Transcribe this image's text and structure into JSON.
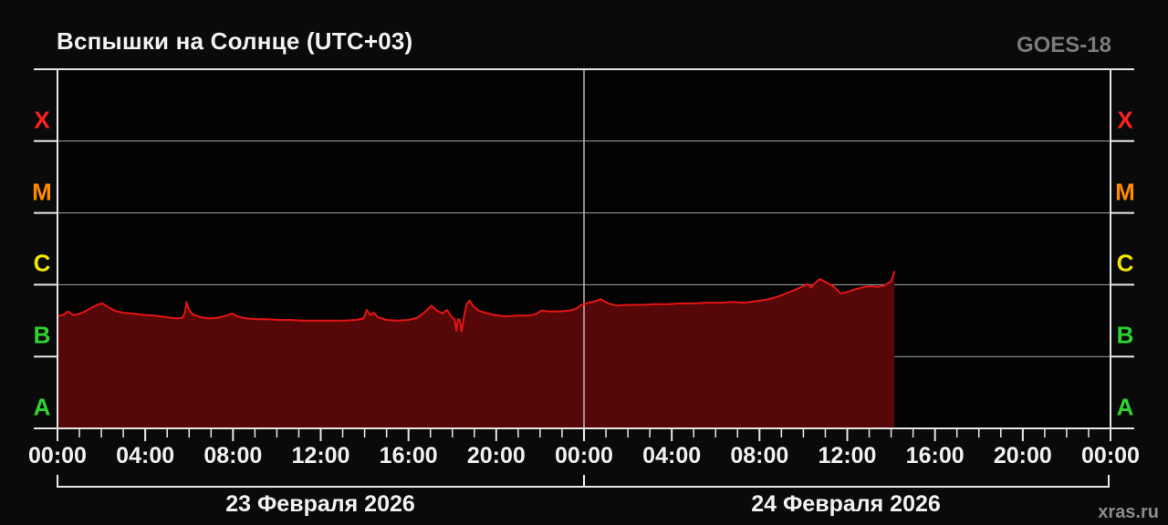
{
  "title": "Вспышки на Солнце (UTC+03)",
  "satellite": "GOES-18",
  "watermark": "xras.ru",
  "colors": {
    "background": "#0a0a0a",
    "plot_background": "#020202",
    "frame": "#e9e9e9",
    "grid": "#a8a8a8",
    "center_gridline": "#b5b5b5",
    "line": "#e51414",
    "fill": "#560707",
    "title_text": "#f2f2f2",
    "satellite_text": "#7b7b7b",
    "watermark_text": "#8c8c8c",
    "tick_text": "#f0f0f0"
  },
  "y_axis": {
    "classes": [
      {
        "label": "X",
        "color": "#ff2020"
      },
      {
        "label": "M",
        "color": "#ff8c00"
      },
      {
        "label": "C",
        "color": "#f0e600"
      },
      {
        "label": "B",
        "color": "#2ed52e"
      },
      {
        "label": "A",
        "color": "#2ed52e"
      }
    ]
  },
  "x_axis": {
    "minor_tick_every_hours": 1,
    "major_tick_every_hours": 4,
    "ticks": [
      {
        "hour": 0,
        "label": "00:00"
      },
      {
        "hour": 4,
        "label": "04:00"
      },
      {
        "hour": 8,
        "label": "08:00"
      },
      {
        "hour": 12,
        "label": "12:00"
      },
      {
        "hour": 16,
        "label": "16:00"
      },
      {
        "hour": 20,
        "label": "20:00"
      },
      {
        "hour": 24,
        "label": "00:00"
      },
      {
        "hour": 28,
        "label": "04:00"
      },
      {
        "hour": 32,
        "label": "08:00"
      },
      {
        "hour": 36,
        "label": "12:00"
      },
      {
        "hour": 40,
        "label": "16:00"
      },
      {
        "hour": 44,
        "label": "20:00"
      },
      {
        "hour": 48,
        "label": "00:00"
      }
    ]
  },
  "dates": [
    {
      "label": "23 Февраля 2026"
    },
    {
      "label": "24 Февраля 2026"
    }
  ],
  "chart_data": {
    "type": "area",
    "title": "Вспышки на Солнце (UTC+03)",
    "satellite": "GOES-18",
    "x_unit": "hours since 23 Feb 2026 00:00 (UTC+03)",
    "x_range": [
      0,
      48
    ],
    "data_end_hour": 38.15,
    "y_scale": "log10 X-ray flux bands, level 0 = bottom of A, 5 = top of X; one unit per flare class decade",
    "y_bands_bottom_to_top": [
      "A",
      "B",
      "C",
      "M",
      "X"
    ],
    "grid": "band boundaries + midnight divider",
    "legend": "none",
    "points": [
      [
        0,
        1.56
      ],
      [
        0.25,
        1.58
      ],
      [
        0.5,
        1.63
      ],
      [
        0.7,
        1.58
      ],
      [
        0.95,
        1.59
      ],
      [
        1.2,
        1.62
      ],
      [
        1.5,
        1.67
      ],
      [
        1.8,
        1.72
      ],
      [
        2.05,
        1.74
      ],
      [
        2.3,
        1.69
      ],
      [
        2.6,
        1.64
      ],
      [
        3.0,
        1.61
      ],
      [
        3.4,
        1.6
      ],
      [
        3.9,
        1.58
      ],
      [
        4.4,
        1.57
      ],
      [
        4.9,
        1.55
      ],
      [
        5.4,
        1.53
      ],
      [
        5.7,
        1.54
      ],
      [
        5.82,
        1.62
      ],
      [
        5.88,
        1.76
      ],
      [
        5.98,
        1.66
      ],
      [
        6.15,
        1.59
      ],
      [
        6.5,
        1.55
      ],
      [
        6.9,
        1.53
      ],
      [
        7.3,
        1.54
      ],
      [
        7.7,
        1.57
      ],
      [
        7.95,
        1.6
      ],
      [
        8.2,
        1.56
      ],
      [
        8.6,
        1.53
      ],
      [
        9.1,
        1.52
      ],
      [
        9.6,
        1.52
      ],
      [
        10.1,
        1.51
      ],
      [
        10.6,
        1.51
      ],
      [
        11.2,
        1.5
      ],
      [
        11.8,
        1.5
      ],
      [
        12.4,
        1.5
      ],
      [
        13.0,
        1.5
      ],
      [
        13.6,
        1.51
      ],
      [
        13.95,
        1.53
      ],
      [
        14.1,
        1.65
      ],
      [
        14.25,
        1.58
      ],
      [
        14.42,
        1.61
      ],
      [
        14.6,
        1.55
      ],
      [
        15.0,
        1.51
      ],
      [
        15.5,
        1.5
      ],
      [
        16.0,
        1.51
      ],
      [
        16.4,
        1.54
      ],
      [
        16.75,
        1.62
      ],
      [
        17.05,
        1.71
      ],
      [
        17.3,
        1.64
      ],
      [
        17.55,
        1.6
      ],
      [
        17.75,
        1.65
      ],
      [
        17.95,
        1.56
      ],
      [
        18.1,
        1.52
      ],
      [
        18.18,
        1.36
      ],
      [
        18.26,
        1.52
      ],
      [
        18.34,
        1.51
      ],
      [
        18.42,
        1.35
      ],
      [
        18.52,
        1.54
      ],
      [
        18.65,
        1.73
      ],
      [
        18.78,
        1.78
      ],
      [
        18.95,
        1.7
      ],
      [
        19.2,
        1.64
      ],
      [
        19.5,
        1.61
      ],
      [
        19.9,
        1.58
      ],
      [
        20.4,
        1.56
      ],
      [
        20.9,
        1.57
      ],
      [
        21.4,
        1.57
      ],
      [
        21.8,
        1.59
      ],
      [
        22.05,
        1.64
      ],
      [
        22.4,
        1.63
      ],
      [
        22.9,
        1.63
      ],
      [
        23.3,
        1.64
      ],
      [
        23.6,
        1.66
      ],
      [
        23.9,
        1.72
      ],
      [
        24.2,
        1.75
      ],
      [
        24.5,
        1.77
      ],
      [
        24.77,
        1.8
      ],
      [
        25.1,
        1.74
      ],
      [
        25.5,
        1.71
      ],
      [
        26.0,
        1.72
      ],
      [
        26.6,
        1.72
      ],
      [
        27.2,
        1.73
      ],
      [
        27.8,
        1.73
      ],
      [
        28.4,
        1.74
      ],
      [
        29.0,
        1.74
      ],
      [
        29.6,
        1.75
      ],
      [
        30.2,
        1.75
      ],
      [
        30.8,
        1.76
      ],
      [
        31.3,
        1.75
      ],
      [
        31.8,
        1.77
      ],
      [
        32.3,
        1.79
      ],
      [
        32.8,
        1.83
      ],
      [
        33.3,
        1.89
      ],
      [
        33.7,
        1.94
      ],
      [
        34.0,
        1.98
      ],
      [
        34.2,
        2.01
      ],
      [
        34.35,
        1.96
      ],
      [
        34.55,
        2.03
      ],
      [
        34.75,
        2.08
      ],
      [
        35.0,
        2.04
      ],
      [
        35.4,
        1.97
      ],
      [
        35.7,
        1.88
      ],
      [
        36.0,
        1.9
      ],
      [
        36.4,
        1.94
      ],
      [
        36.8,
        1.97
      ],
      [
        37.1,
        1.98
      ],
      [
        37.4,
        1.97
      ],
      [
        37.7,
        1.99
      ],
      [
        38.0,
        2.05
      ],
      [
        38.15,
        2.18
      ]
    ]
  }
}
